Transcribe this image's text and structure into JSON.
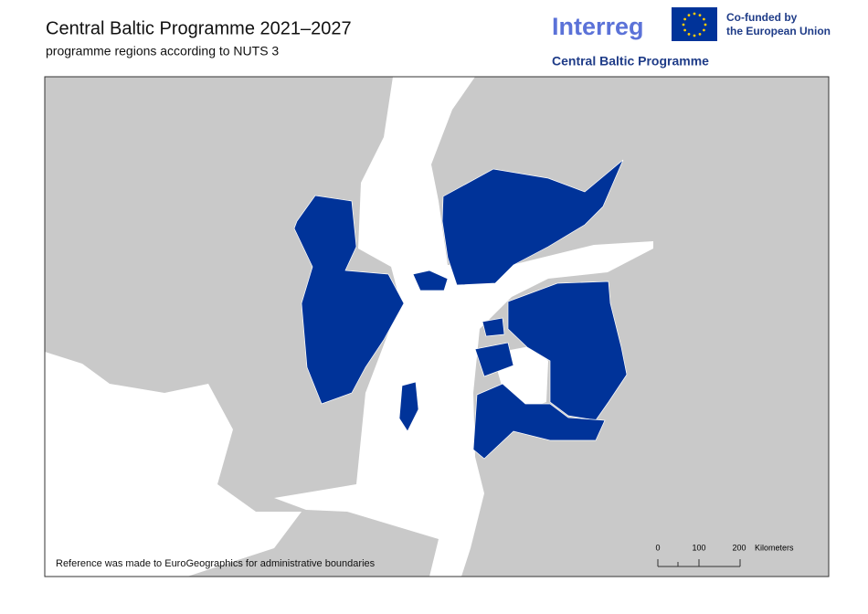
{
  "header": {
    "title": "Central Baltic Programme 2021–2027",
    "subtitle": "programme regions according to NUTS 3"
  },
  "logo": {
    "interreg": "Interreg",
    "eu_line1": "Co-funded by",
    "eu_line2": "the European Union",
    "programme": "Central Baltic Programme"
  },
  "map": {
    "reference": "Reference was made to EuroGeographics for administrative boundaries",
    "scale_bar": {
      "labels": [
        "0",
        "100",
        "200"
      ],
      "unit": "Kilometers"
    }
  }
}
